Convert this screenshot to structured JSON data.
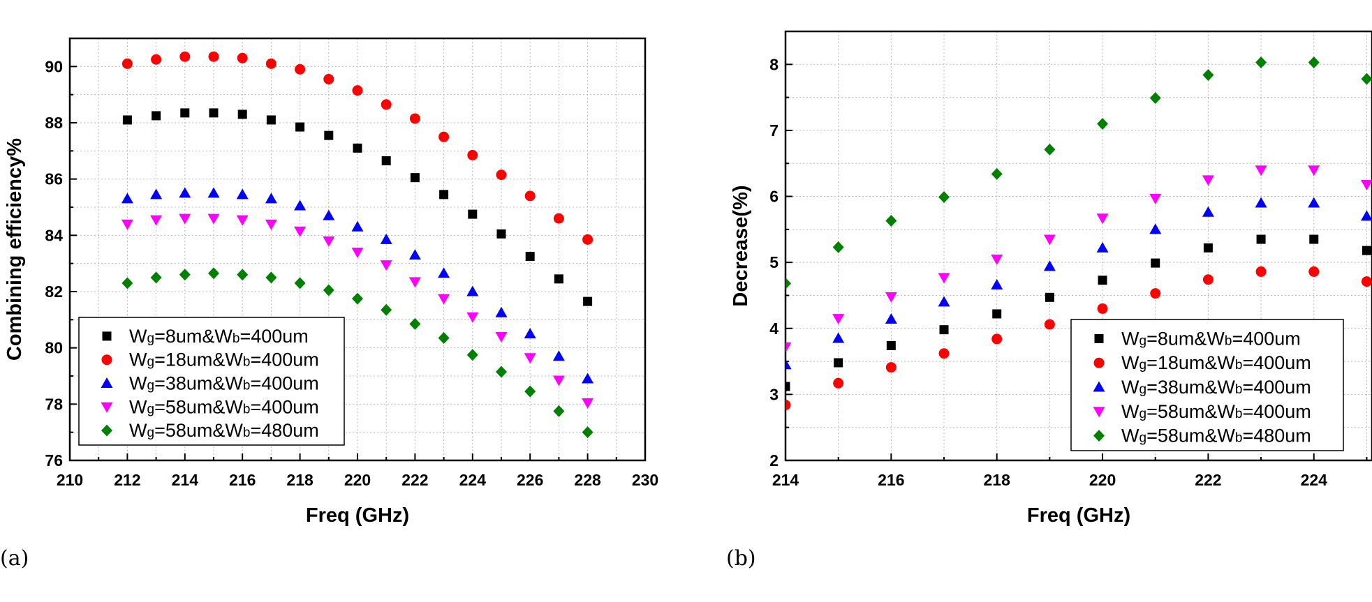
{
  "chart_data": [
    {
      "type": "scatter",
      "panel_label": "(a)",
      "xlabel": "Freq (GHz)",
      "ylabel": "Combining efficiency%",
      "xlim": [
        210,
        230
      ],
      "ylim": [
        76,
        91
      ],
      "xticks": [
        210,
        212,
        214,
        216,
        218,
        220,
        222,
        224,
        226,
        228,
        230
      ],
      "yticks": [
        76,
        78,
        80,
        82,
        84,
        86,
        88,
        90
      ],
      "grid": true,
      "legend_position": "bottom-left",
      "x": [
        212,
        213,
        214,
        215,
        216,
        217,
        218,
        219,
        220,
        221,
        222,
        223,
        224,
        225,
        226,
        227,
        228
      ],
      "series": [
        {
          "name": "Wg=8um&Wb=400um",
          "name_base": "W",
          "name_sub1": "g",
          "name_mid": "=8um&W",
          "name_sub2": "b",
          "name_tail": "=400um",
          "marker": "square",
          "color": "#000000",
          "values": [
            88.1,
            88.25,
            88.35,
            88.35,
            88.3,
            88.1,
            87.85,
            87.55,
            87.1,
            86.65,
            86.05,
            85.45,
            84.75,
            84.05,
            83.25,
            82.45,
            81.65
          ]
        },
        {
          "name": "Wg=18um&Wb=400um",
          "name_base": "W",
          "name_sub1": "g",
          "name_mid": "=18um&W",
          "name_sub2": "b",
          "name_tail": "=400um",
          "marker": "circle",
          "color": "#ff0000",
          "values": [
            90.1,
            90.25,
            90.35,
            90.35,
            90.3,
            90.1,
            89.9,
            89.55,
            89.15,
            88.65,
            88.15,
            87.5,
            86.85,
            86.15,
            85.4,
            84.6,
            83.85
          ]
        },
        {
          "name": "Wg=38um&Wb=400um",
          "name_base": "W",
          "name_sub1": "g",
          "name_mid": "=38um&W",
          "name_sub2": "b",
          "name_tail": "=400um",
          "marker": "triangle-up",
          "color": "#0000ff",
          "values": [
            85.3,
            85.45,
            85.5,
            85.5,
            85.45,
            85.3,
            85.05,
            84.7,
            84.3,
            83.85,
            83.3,
            82.65,
            82.0,
            81.25,
            80.5,
            79.7,
            78.9
          ]
        },
        {
          "name": "Wg=58um&Wb=400um",
          "name_base": "W",
          "name_sub1": "g",
          "name_mid": "=58um&W",
          "name_sub2": "b",
          "name_tail": "=400um",
          "marker": "triangle-down",
          "color": "#ff00ff",
          "values": [
            84.4,
            84.55,
            84.6,
            84.6,
            84.55,
            84.4,
            84.15,
            83.8,
            83.4,
            82.95,
            82.35,
            81.75,
            81.1,
            80.4,
            79.65,
            78.85,
            78.05
          ]
        },
        {
          "name": "Wg=58um&Wb=480um",
          "name_base": "W",
          "name_sub1": "g",
          "name_mid": "=58um&W",
          "name_sub2": "b",
          "name_tail": "=480um",
          "marker": "diamond",
          "color": "#008000",
          "values": [
            82.3,
            82.5,
            82.6,
            82.65,
            82.6,
            82.5,
            82.3,
            82.05,
            81.75,
            81.35,
            80.85,
            80.35,
            79.75,
            79.15,
            78.45,
            77.75,
            77.0
          ]
        }
      ]
    },
    {
      "type": "scatter",
      "panel_label": "(b)",
      "xlabel": "Freq (GHz)",
      "ylabel": "Decrease(%)",
      "xlim": [
        214,
        225.1
      ],
      "ylim": [
        2,
        8.5
      ],
      "xticks": [
        214,
        216,
        218,
        220,
        222,
        224
      ],
      "yticks": [
        2,
        3,
        4,
        5,
        6,
        7,
        8
      ],
      "grid": true,
      "legend_position": "bottom-right",
      "x": [
        214,
        215,
        216,
        217,
        218,
        219,
        220,
        221,
        222,
        223,
        224,
        225
      ],
      "series": [
        {
          "name": "Wg=8um&Wb=400um",
          "name_base": "W",
          "name_sub1": "g",
          "name_mid": "=8um&W",
          "name_sub2": "b",
          "name_tail": "=400um",
          "marker": "square",
          "color": "#000000",
          "values": [
            3.12,
            3.48,
            3.74,
            3.98,
            4.22,
            4.47,
            4.73,
            4.99,
            5.22,
            5.35,
            5.35,
            5.18
          ]
        },
        {
          "name": "Wg=18um&Wb=400um",
          "name_base": "W",
          "name_sub1": "g",
          "name_mid": "=18um&W",
          "name_sub2": "b",
          "name_tail": "=400um",
          "marker": "circle",
          "color": "#ff0000",
          "values": [
            2.84,
            3.17,
            3.41,
            3.62,
            3.84,
            4.06,
            4.3,
            4.53,
            4.74,
            4.86,
            4.86,
            4.71
          ]
        },
        {
          "name": "Wg=38um&Wb=400um",
          "name_base": "W",
          "name_sub1": "g",
          "name_mid": "=38um&W",
          "name_sub2": "b",
          "name_tail": "=400um",
          "marker": "triangle-up",
          "color": "#0000ff",
          "values": [
            3.45,
            3.85,
            4.14,
            4.4,
            4.66,
            4.94,
            5.22,
            5.5,
            5.76,
            5.9,
            5.9,
            5.7
          ]
        },
        {
          "name": "Wg=58um&Wb=400um",
          "name_base": "W",
          "name_sub1": "g",
          "name_mid": "=58um&W",
          "name_sub2": "b",
          "name_tail": "=400um",
          "marker": "triangle-down",
          "color": "#ff00ff",
          "values": [
            3.72,
            4.15,
            4.48,
            4.77,
            5.05,
            5.35,
            5.67,
            5.97,
            6.25,
            6.4,
            6.4,
            6.18
          ]
        },
        {
          "name": "Wg=58um&Wb=480um",
          "name_base": "W",
          "name_sub1": "g",
          "name_mid": "=58um&W",
          "name_sub2": "b",
          "name_tail": "=480um",
          "marker": "diamond",
          "color": "#008000",
          "values": [
            4.68,
            5.23,
            5.63,
            5.99,
            6.34,
            6.71,
            7.1,
            7.49,
            7.84,
            8.03,
            8.03,
            7.78
          ]
        }
      ]
    }
  ]
}
